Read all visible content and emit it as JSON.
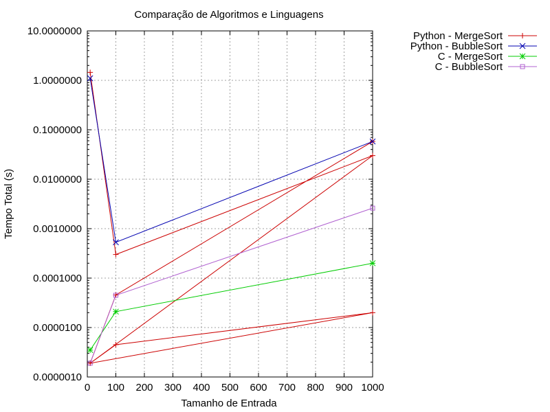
{
  "chart_data": {
    "type": "line",
    "title": "Comparação de Algoritmos e Linguagens",
    "xlabel": "Tamanho de Entrada",
    "ylabel": "Tempo Total (s)",
    "xlim": [
      0,
      1000
    ],
    "ylim": [
      1e-06,
      10
    ],
    "y_scale": "log",
    "grid": true,
    "legend_position": "outside-top-right",
    "x_ticks": [
      0,
      100,
      200,
      300,
      400,
      500,
      600,
      700,
      800,
      900,
      1000
    ],
    "x_tick_labels": [
      "0",
      "100",
      "200",
      "300",
      "400",
      "500",
      "600",
      "700",
      "800",
      "900",
      "1000"
    ],
    "y_ticks": [
      1e-06,
      1e-05,
      0.0001,
      0.001,
      0.01,
      0.1,
      1,
      10
    ],
    "y_tick_labels": [
      "0.0000010",
      "0.0000100",
      "0.0001000",
      "0.0010000",
      "0.0100000",
      "0.1000000",
      "1.0000000",
      "10.0000000"
    ],
    "series": [
      {
        "name": "Python - MergeSort",
        "color": "#cc0000",
        "marker": "plus",
        "x": [
          10,
          100,
          1000,
          10,
          100,
          1000,
          10,
          100,
          1000
        ],
        "y": [
          1.45,
          0.0003,
          0.03,
          1.9e-06,
          4.5e-06,
          2e-05,
          1.9e-06,
          4.55e-05,
          0.058
        ]
      },
      {
        "name": "Python - BubbleSort",
        "color": "#0000b0",
        "marker": "cross",
        "x": [
          10,
          100,
          1000
        ],
        "y": [
          1.1,
          0.00053,
          0.058
        ]
      },
      {
        "name": "C - MergeSort",
        "color": "#00cc00",
        "marker": "star",
        "x": [
          10,
          100,
          1000
        ],
        "y": [
          3.5e-06,
          2.1e-05,
          0.0002
        ]
      },
      {
        "name": "C - BubbleSort",
        "color": "#b060d0",
        "marker": "square",
        "x": [
          10,
          100,
          1000
        ],
        "y": [
          1.9e-06,
          4.5e-05,
          0.0026
        ]
      }
    ]
  }
}
